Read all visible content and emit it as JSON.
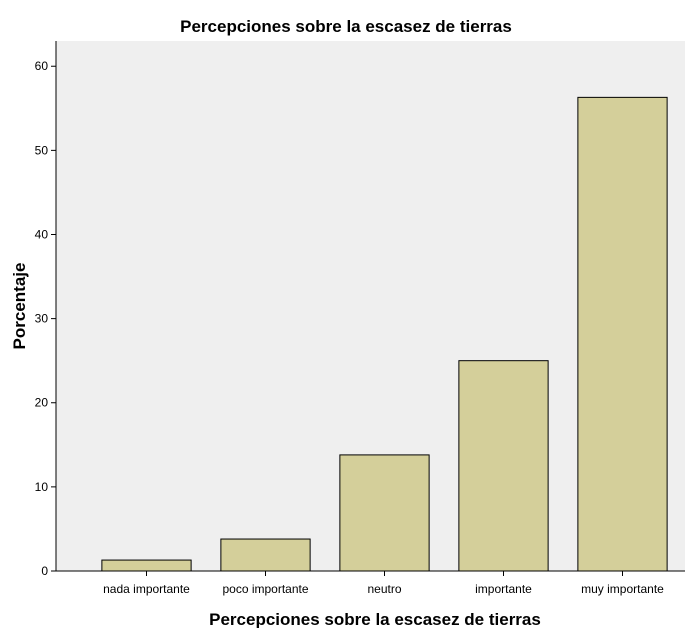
{
  "chart_data": {
    "type": "bar",
    "title": "Percepciones sobre la escasez de tierras",
    "xlabel": "Percepciones sobre la escasez de tierras",
    "ylabel": "Porcentaje",
    "categories": [
      "nada importante",
      "poco importante",
      "neutro",
      "importante",
      "muy importante"
    ],
    "values": [
      1.3,
      3.8,
      13.8,
      25.0,
      56.3
    ],
    "ylim": [
      0,
      63
    ],
    "yticks": [
      0,
      10,
      20,
      30,
      40,
      50,
      60
    ],
    "grid": false,
    "legend": "none",
    "colors": {
      "bar_fill": "#d4cf9a",
      "bar_stroke": "#000000",
      "plot_background": "#efefef",
      "page_background": "#ffffff"
    }
  }
}
